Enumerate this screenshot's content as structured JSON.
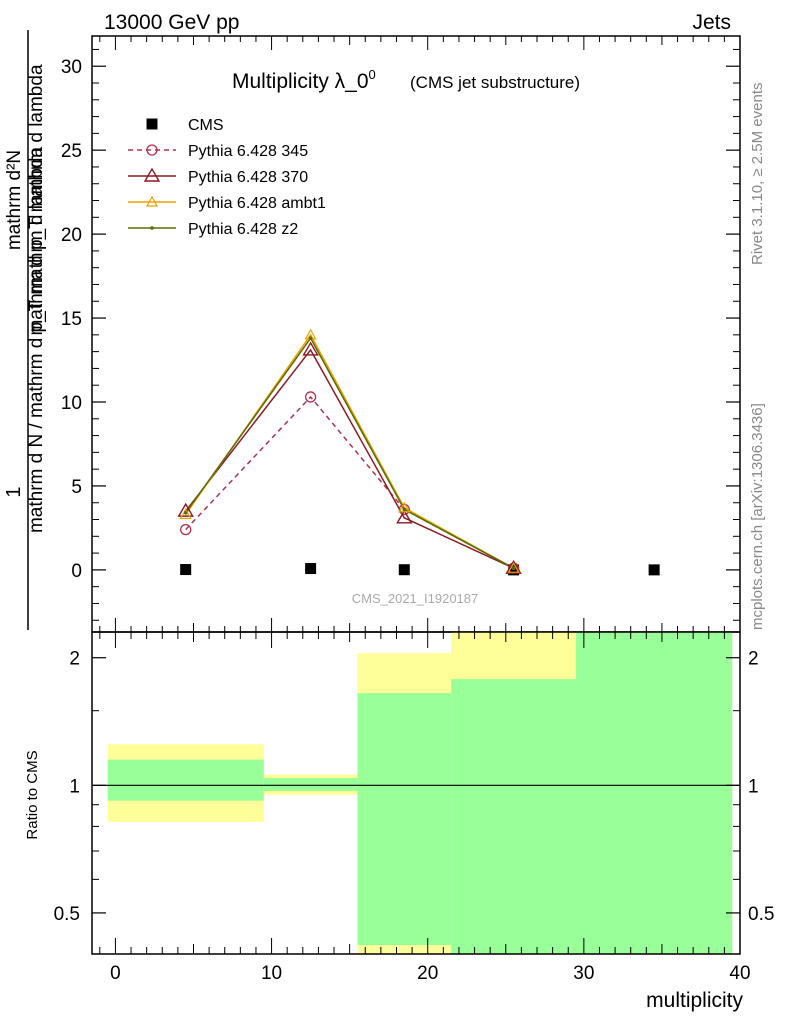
{
  "header": {
    "left": "13000 GeV pp",
    "right": "Jets"
  },
  "side": {
    "rivet": "Rivet 3.1.10, ≥ 2.5M events",
    "mcplots": "mcplots.cern.ch [arXiv:1306.3436]"
  },
  "chart_data": [
    {
      "type": "line",
      "title": "Multiplicity λ_0⁰",
      "title_main": "Multiplicity λ_0",
      "title_sup": "0",
      "subtitle": "(CMS jet substructure)",
      "watermark": "CMS_2021_I1920187",
      "ylabel_numerator": "1",
      "ylabel_denominator": "mathrm d N / mathrm d p_T mathrm d lambda",
      "ylabel_fraction_top": "mathrm d²N",
      "ylabel_fraction_bottom": "mathrm d p_T mathrm d lambda",
      "xlim": [
        -1.5,
        40
      ],
      "ylim": [
        -3.7,
        31.8
      ],
      "yticks": [
        0,
        5,
        10,
        15,
        20,
        25,
        30
      ],
      "tick_labels": [
        "0",
        "5",
        "10",
        "15",
        "20",
        "25",
        "30"
      ],
      "legend_position": "top-left",
      "series": [
        {
          "name": "CMS",
          "color": "#000000",
          "marker": "square",
          "line": "none",
          "x": [
            4.5,
            12.5,
            18.5,
            25.5,
            34.5
          ],
          "y": [
            0.02,
            0.08,
            0.01,
            0.0,
            0.0
          ]
        },
        {
          "name": "Pythia 6.428 345",
          "color": "#b0304e",
          "marker": "circle-open",
          "line": "dashed",
          "x": [
            4.5,
            12.5,
            18.5,
            25.5
          ],
          "y": [
            2.4,
            10.3,
            3.6,
            0.1
          ]
        },
        {
          "name": "Pythia 6.428 370",
          "color": "#8b1a24",
          "marker": "triangle-open",
          "line": "solid",
          "x": [
            4.5,
            12.5,
            18.5,
            25.5
          ],
          "y": [
            3.5,
            13.1,
            3.1,
            0.1
          ]
        },
        {
          "name": "Pythia 6.428 ambt1",
          "color": "#e8a400",
          "marker": "triangle-open-small",
          "line": "solid",
          "x": [
            4.5,
            12.5,
            18.5,
            25.5
          ],
          "y": [
            3.3,
            14.0,
            3.7,
            0.1
          ]
        },
        {
          "name": "Pythia 6.428 z2",
          "color": "#5a6b00",
          "marker": "dot",
          "line": "solid",
          "x": [
            4.5,
            12.5,
            18.5,
            25.5
          ],
          "y": [
            3.4,
            13.8,
            3.6,
            0.1
          ]
        }
      ]
    },
    {
      "type": "area",
      "ylabel": "Ratio to CMS",
      "xlabel": "multiplicity",
      "xlim": [
        -1.5,
        40
      ],
      "ylim": [
        0.4,
        2.3
      ],
      "log_y": true,
      "yticks": [
        0.5,
        1,
        2
      ],
      "tick_labels": [
        "0.5",
        "1",
        "2"
      ],
      "xticks": [
        0,
        10,
        20,
        30,
        40
      ],
      "xtick_labels": [
        "0",
        "10",
        "20",
        "30",
        "40"
      ],
      "reference_line": 1,
      "bands": [
        {
          "xmin": -0.5,
          "xmax": 9.5,
          "yellow": [
            0.82,
            1.25
          ],
          "green": [
            0.92,
            1.15
          ]
        },
        {
          "xmin": 9.5,
          "xmax": 15.5,
          "yellow": [
            0.95,
            1.06
          ],
          "green": [
            0.97,
            1.04
          ]
        },
        {
          "xmin": 15.5,
          "xmax": 21.5,
          "yellow": [
            0.4,
            2.05
          ],
          "green": [
            0.42,
            1.65
          ]
        },
        {
          "xmin": 21.5,
          "xmax": 29.5,
          "yellow": [
            0.4,
            2.3
          ],
          "green": [
            0.4,
            1.78
          ]
        },
        {
          "xmin": 29.5,
          "xmax": 39.5,
          "yellow": [
            0.4,
            2.3
          ],
          "green": [
            0.4,
            2.3
          ]
        }
      ],
      "colors": {
        "yellow": "#ffff99",
        "green": "#99ff99"
      }
    }
  ]
}
